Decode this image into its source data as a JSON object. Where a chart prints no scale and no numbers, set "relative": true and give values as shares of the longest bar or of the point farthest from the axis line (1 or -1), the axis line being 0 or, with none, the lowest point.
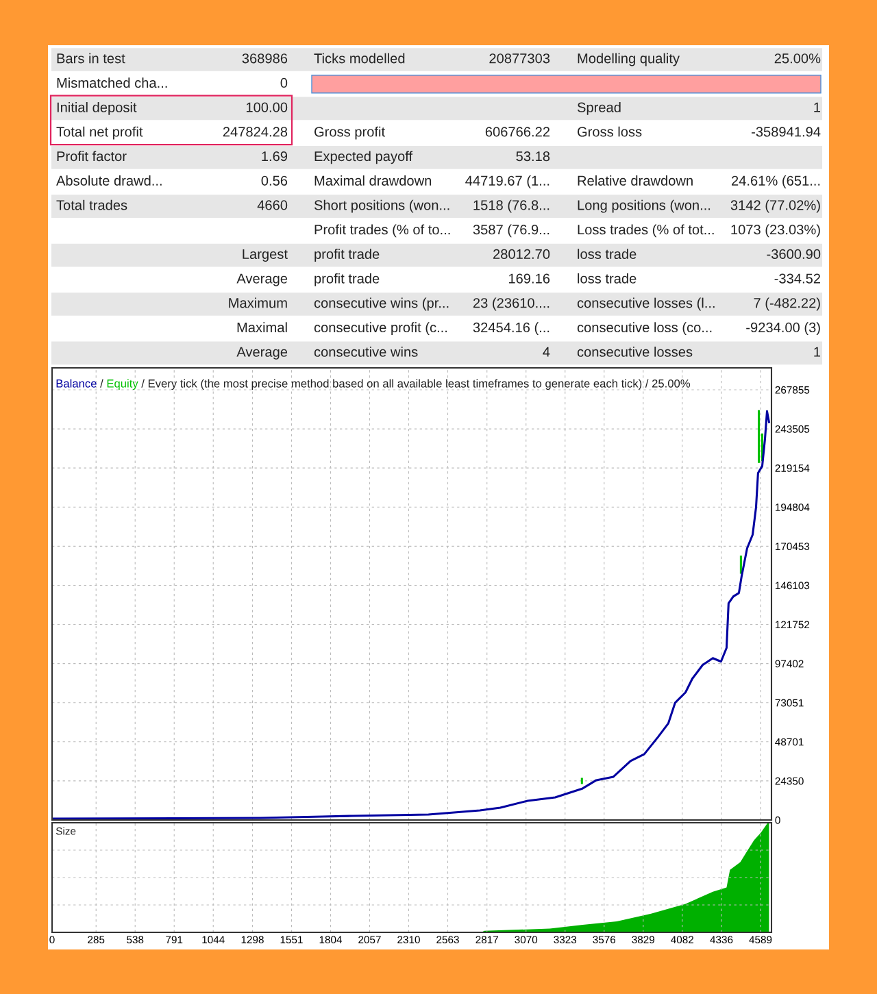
{
  "chart_data": [
    {
      "type": "other",
      "annotations": [
        "Bars in test",
        "368986",
        "Ticks modelled",
        "20877303",
        "Modelling quality",
        "25.00%",
        "Mismatched cha...",
        "0",
        null,
        null,
        null,
        null,
        "Initial deposit",
        "100.00",
        null,
        null,
        "Spread",
        "1",
        "Total net profit",
        "247824.28",
        "Gross profit",
        "606766.22",
        "Gross loss",
        "-358941.94",
        "Profit factor",
        "1.69",
        "Expected payoff",
        "53.18",
        null,
        null,
        "Absolute drawd...",
        "0.56",
        "Maximal drawdown",
        "44719.67 (1...",
        "Relative drawdown",
        "24.61% (651...",
        "Total trades",
        "4660",
        "Short positions (won...",
        "1518 (76.8...",
        "Long positions (won...",
        "3142 (77.02%)",
        null,
        null,
        "Profit trades (% of to...",
        "3587 (76.9...",
        "Loss trades (% of tot...",
        "1073 (23.03%)",
        null,
        "Largest",
        "profit trade",
        "28012.70",
        "loss trade",
        "-3600.90",
        null,
        "Average",
        "profit trade",
        "169.16",
        "loss trade",
        "-334.52",
        null,
        "Maximum",
        "consecutive wins (pr...",
        "23 (23610....",
        "consecutive losses (l...",
        "7 (-482.22)",
        null,
        "Maximal",
        "consecutive profit (c...",
        "32454.16 (...",
        "consecutive loss (co...",
        "-9234.00 (3)",
        null,
        "Average",
        "consecutive wins",
        "4",
        "consecutive losses",
        "1"
      ]
    },
    {
      "type": "line",
      "annotations": [
        "/"
      ],
      "title": "/ Every tick (the most precise method based on all available least timeframes to generate each tick) / 25.00%",
      "legend": "top left",
      "grid": true,
      "line_style": "solid",
      "tick_labels": "y",
      "xlim": [
        0,
        4660
      ],
      "xticks": [
        0,
        285,
        538,
        791,
        1044,
        1298,
        1551,
        1804,
        2057,
        2310,
        2563,
        2817,
        3070,
        3323,
        3576,
        3829,
        4082,
        4336,
        4589
      ],
      "ylim": [
        0,
        281500
      ],
      "yticks": [
        0,
        24350,
        48701,
        73051,
        97402,
        121752,
        146103,
        170453,
        194804,
        219154,
        243505,
        267855
      ],
      "series": [
        {
          "name": "Equity",
          "color": "#00c000",
          "x": [
            3432,
            3432,
            null,
            4462,
            4462,
            null,
            4578,
            4578,
            null,
            4600,
            4600
          ],
          "values": [
            23000,
            25600,
            null,
            154000,
            164000,
            null,
            223000,
            254500,
            null,
            224000,
            240000
          ]
        },
        {
          "name": "Balance",
          "color": "#0000a0",
          "x": [
            0,
            1350,
            1749,
            1949,
            2438,
            2771,
            2904,
            3081,
            3259,
            3437,
            3525,
            3636,
            3747,
            3836,
            3925,
            3992,
            4036,
            4103,
            4147,
            4214,
            4280,
            4333,
            4369,
            4382,
            4413,
            4449,
            4467,
            4502,
            4538,
            4560,
            4573,
            4600,
            4618,
            4631,
            4644
          ],
          "values": [
            854,
            1281,
            2136,
            2563,
            3417,
            5980,
            7690,
            11960,
            14100,
            19650,
            24770,
            26900,
            36720,
            41000,
            51670,
            60210,
            73030,
            79440,
            87970,
            96500,
            100770,
            98640,
            107180,
            134940,
            139210,
            141340,
            152010,
            169100,
            177640,
            194710,
            216060,
            220330,
            237410,
            254490,
            247824
          ]
        }
      ]
    },
    {
      "type": "area",
      "title": "Size",
      "relative": true,
      "grid": true,
      "tick_labels": "x",
      "xlim": [
        0,
        4660
      ],
      "xticks": [
        0,
        285,
        538,
        791,
        1044,
        1298,
        1551,
        1804,
        2057,
        2310,
        2563,
        2817,
        3070,
        3323,
        3576,
        3829,
        4082,
        4336,
        4589
      ],
      "series": [
        {
          "color": "#00b000",
          "x": [
            0,
            2780,
            2800,
            3225,
            3437,
            3658,
            3880,
            4103,
            4280,
            4369,
            4391,
            4458,
            4502,
            4547,
            4591,
            4636,
            4644
          ],
          "values": [
            0,
            0,
            0.014,
            0.034,
            0.068,
            0.1,
            0.17,
            0.26,
            0.37,
            0.41,
            0.57,
            0.64,
            0.74,
            0.84,
            0.91,
            1,
            1
          ]
        }
      ]
    }
  ]
}
